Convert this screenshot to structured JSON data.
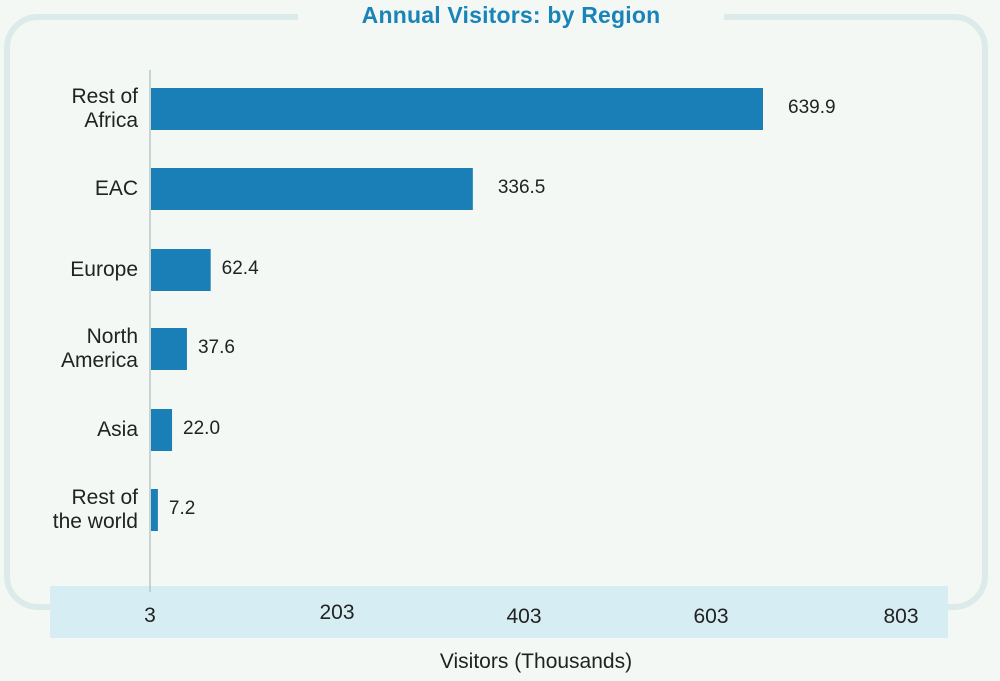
{
  "chart_data": {
    "type": "bar",
    "orientation": "horizontal",
    "title": "Annual Visitors: by Region",
    "xlabel": "Visitors (Thousands)",
    "ylabel": "",
    "categories": [
      "Rest of\nAfrica",
      "EAC",
      "Europe",
      "North\nAmerica",
      "Asia",
      "Rest of\nthe world"
    ],
    "values": [
      639.9,
      336.5,
      62.4,
      37.6,
      22.0,
      7.2
    ],
    "value_labels": [
      "639.9",
      "336.5",
      "62.4",
      "37.6",
      "22.0",
      "7.2"
    ],
    "xticks": [
      "3",
      "203",
      "403",
      "603",
      "803"
    ],
    "xlim": [
      0,
      803
    ],
    "grid": false,
    "colors": {
      "bar": "#1a7fb6",
      "title": "#1a84b8",
      "axis_band": "#d7edf4",
      "frame": "#dcebe9"
    }
  }
}
